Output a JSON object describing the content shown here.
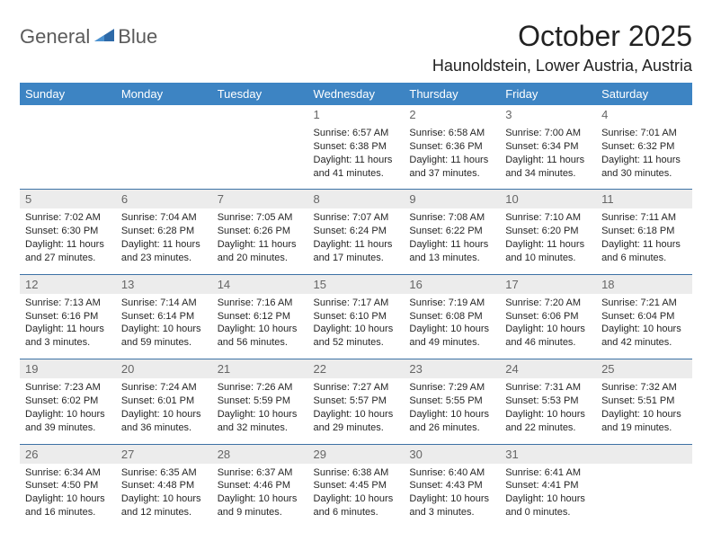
{
  "logo": {
    "text1": "General",
    "text2": "Blue"
  },
  "title": "October 2025",
  "location": "Haunoldstein, Lower Austria, Austria",
  "dayHeaders": [
    "Sunday",
    "Monday",
    "Tuesday",
    "Wednesday",
    "Thursday",
    "Friday",
    "Saturday"
  ],
  "colors": {
    "headerBg": "#3d84c3",
    "border": "#3d72a5",
    "dayBg": "#ececec"
  },
  "weeks": [
    [
      {
        "empty": true
      },
      {
        "empty": true
      },
      {
        "empty": true
      },
      {
        "n": "1",
        "sr": "Sunrise: 6:57 AM",
        "ss": "Sunset: 6:38 PM",
        "dl1": "Daylight: 11 hours",
        "dl2": "and 41 minutes."
      },
      {
        "n": "2",
        "sr": "Sunrise: 6:58 AM",
        "ss": "Sunset: 6:36 PM",
        "dl1": "Daylight: 11 hours",
        "dl2": "and 37 minutes."
      },
      {
        "n": "3",
        "sr": "Sunrise: 7:00 AM",
        "ss": "Sunset: 6:34 PM",
        "dl1": "Daylight: 11 hours",
        "dl2": "and 34 minutes."
      },
      {
        "n": "4",
        "sr": "Sunrise: 7:01 AM",
        "ss": "Sunset: 6:32 PM",
        "dl1": "Daylight: 11 hours",
        "dl2": "and 30 minutes."
      }
    ],
    [
      {
        "n": "5",
        "sr": "Sunrise: 7:02 AM",
        "ss": "Sunset: 6:30 PM",
        "dl1": "Daylight: 11 hours",
        "dl2": "and 27 minutes."
      },
      {
        "n": "6",
        "sr": "Sunrise: 7:04 AM",
        "ss": "Sunset: 6:28 PM",
        "dl1": "Daylight: 11 hours",
        "dl2": "and 23 minutes."
      },
      {
        "n": "7",
        "sr": "Sunrise: 7:05 AM",
        "ss": "Sunset: 6:26 PM",
        "dl1": "Daylight: 11 hours",
        "dl2": "and 20 minutes."
      },
      {
        "n": "8",
        "sr": "Sunrise: 7:07 AM",
        "ss": "Sunset: 6:24 PM",
        "dl1": "Daylight: 11 hours",
        "dl2": "and 17 minutes."
      },
      {
        "n": "9",
        "sr": "Sunrise: 7:08 AM",
        "ss": "Sunset: 6:22 PM",
        "dl1": "Daylight: 11 hours",
        "dl2": "and 13 minutes."
      },
      {
        "n": "10",
        "sr": "Sunrise: 7:10 AM",
        "ss": "Sunset: 6:20 PM",
        "dl1": "Daylight: 11 hours",
        "dl2": "and 10 minutes."
      },
      {
        "n": "11",
        "sr": "Sunrise: 7:11 AM",
        "ss": "Sunset: 6:18 PM",
        "dl1": "Daylight: 11 hours",
        "dl2": "and 6 minutes."
      }
    ],
    [
      {
        "n": "12",
        "sr": "Sunrise: 7:13 AM",
        "ss": "Sunset: 6:16 PM",
        "dl1": "Daylight: 11 hours",
        "dl2": "and 3 minutes."
      },
      {
        "n": "13",
        "sr": "Sunrise: 7:14 AM",
        "ss": "Sunset: 6:14 PM",
        "dl1": "Daylight: 10 hours",
        "dl2": "and 59 minutes."
      },
      {
        "n": "14",
        "sr": "Sunrise: 7:16 AM",
        "ss": "Sunset: 6:12 PM",
        "dl1": "Daylight: 10 hours",
        "dl2": "and 56 minutes."
      },
      {
        "n": "15",
        "sr": "Sunrise: 7:17 AM",
        "ss": "Sunset: 6:10 PM",
        "dl1": "Daylight: 10 hours",
        "dl2": "and 52 minutes."
      },
      {
        "n": "16",
        "sr": "Sunrise: 7:19 AM",
        "ss": "Sunset: 6:08 PM",
        "dl1": "Daylight: 10 hours",
        "dl2": "and 49 minutes."
      },
      {
        "n": "17",
        "sr": "Sunrise: 7:20 AM",
        "ss": "Sunset: 6:06 PM",
        "dl1": "Daylight: 10 hours",
        "dl2": "and 46 minutes."
      },
      {
        "n": "18",
        "sr": "Sunrise: 7:21 AM",
        "ss": "Sunset: 6:04 PM",
        "dl1": "Daylight: 10 hours",
        "dl2": "and 42 minutes."
      }
    ],
    [
      {
        "n": "19",
        "sr": "Sunrise: 7:23 AM",
        "ss": "Sunset: 6:02 PM",
        "dl1": "Daylight: 10 hours",
        "dl2": "and 39 minutes."
      },
      {
        "n": "20",
        "sr": "Sunrise: 7:24 AM",
        "ss": "Sunset: 6:01 PM",
        "dl1": "Daylight: 10 hours",
        "dl2": "and 36 minutes."
      },
      {
        "n": "21",
        "sr": "Sunrise: 7:26 AM",
        "ss": "Sunset: 5:59 PM",
        "dl1": "Daylight: 10 hours",
        "dl2": "and 32 minutes."
      },
      {
        "n": "22",
        "sr": "Sunrise: 7:27 AM",
        "ss": "Sunset: 5:57 PM",
        "dl1": "Daylight: 10 hours",
        "dl2": "and 29 minutes."
      },
      {
        "n": "23",
        "sr": "Sunrise: 7:29 AM",
        "ss": "Sunset: 5:55 PM",
        "dl1": "Daylight: 10 hours",
        "dl2": "and 26 minutes."
      },
      {
        "n": "24",
        "sr": "Sunrise: 7:31 AM",
        "ss": "Sunset: 5:53 PM",
        "dl1": "Daylight: 10 hours",
        "dl2": "and 22 minutes."
      },
      {
        "n": "25",
        "sr": "Sunrise: 7:32 AM",
        "ss": "Sunset: 5:51 PM",
        "dl1": "Daylight: 10 hours",
        "dl2": "and 19 minutes."
      }
    ],
    [
      {
        "n": "26",
        "sr": "Sunrise: 6:34 AM",
        "ss": "Sunset: 4:50 PM",
        "dl1": "Daylight: 10 hours",
        "dl2": "and 16 minutes."
      },
      {
        "n": "27",
        "sr": "Sunrise: 6:35 AM",
        "ss": "Sunset: 4:48 PM",
        "dl1": "Daylight: 10 hours",
        "dl2": "and 12 minutes."
      },
      {
        "n": "28",
        "sr": "Sunrise: 6:37 AM",
        "ss": "Sunset: 4:46 PM",
        "dl1": "Daylight: 10 hours",
        "dl2": "and 9 minutes."
      },
      {
        "n": "29",
        "sr": "Sunrise: 6:38 AM",
        "ss": "Sunset: 4:45 PM",
        "dl1": "Daylight: 10 hours",
        "dl2": "and 6 minutes."
      },
      {
        "n": "30",
        "sr": "Sunrise: 6:40 AM",
        "ss": "Sunset: 4:43 PM",
        "dl1": "Daylight: 10 hours",
        "dl2": "and 3 minutes."
      },
      {
        "n": "31",
        "sr": "Sunrise: 6:41 AM",
        "ss": "Sunset: 4:41 PM",
        "dl1": "Daylight: 10 hours",
        "dl2": "and 0 minutes."
      },
      {
        "empty": true
      }
    ]
  ]
}
